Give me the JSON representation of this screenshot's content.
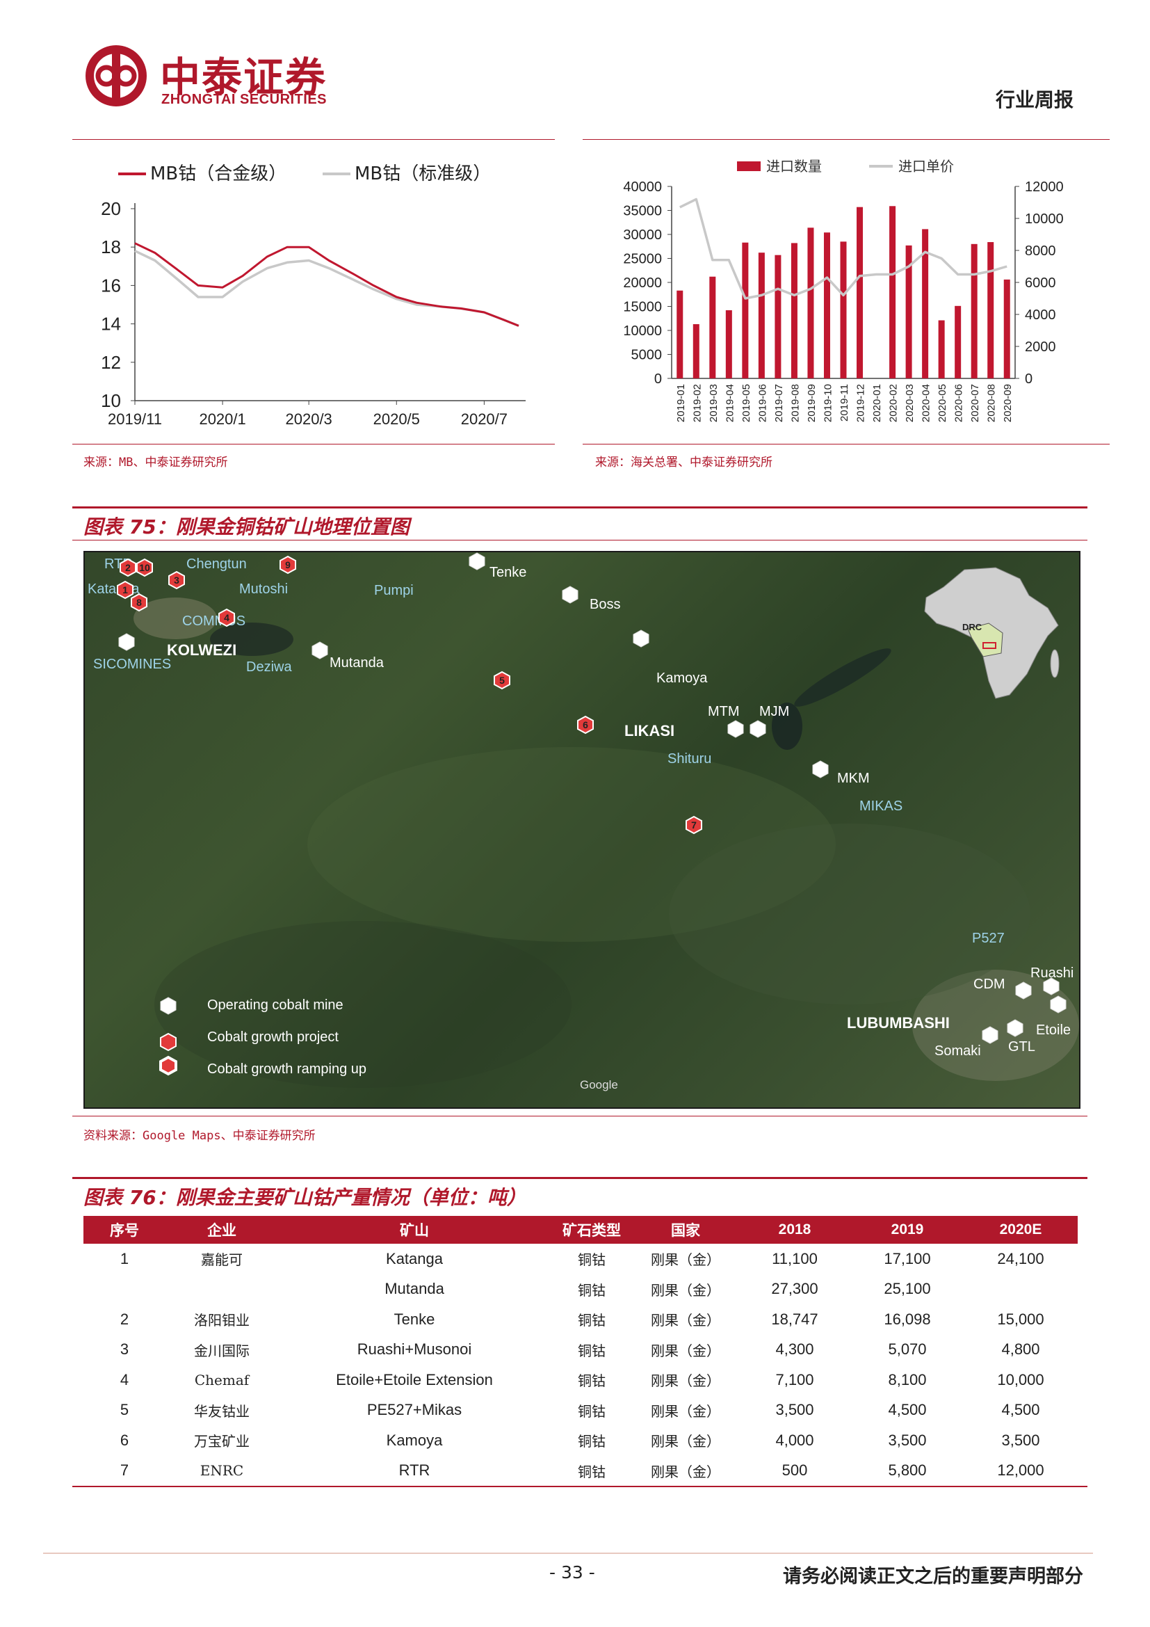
{
  "header": {
    "brand_cn": "中泰证券",
    "brand_en": "ZHONGTAI SECURITIES",
    "doc_type": "行业周报"
  },
  "left_chart": {
    "source": "来源：MB、中泰证券研究所"
  },
  "right_chart": {
    "source": "来源：海关总署、中泰证券研究所"
  },
  "chart_data": [
    {
      "type": "line",
      "title": "",
      "series": [
        {
          "name": "MB钴（合金级）",
          "color": "#c0172f",
          "x": [
            "2019-11-01",
            "2019-11-15",
            "2019-12-01",
            "2019-12-15",
            "2020-01-01",
            "2020-01-15",
            "2020-02-01",
            "2020-02-15",
            "2020-03-01",
            "2020-03-15",
            "2020-04-01",
            "2020-04-15",
            "2020-05-01",
            "2020-05-15",
            "2020-06-01",
            "2020-06-15",
            "2020-07-01",
            "2020-07-15",
            "2020-07-25"
          ],
          "values": [
            18.2,
            17.7,
            16.8,
            16.0,
            15.9,
            16.5,
            17.5,
            18.0,
            18.0,
            17.3,
            16.6,
            16.0,
            15.4,
            15.1,
            14.9,
            14.8,
            14.6,
            14.2,
            13.9
          ]
        },
        {
          "name": "MB钴（标准级）",
          "color": "#c8c8c8",
          "x": [
            "2019-11-01",
            "2019-11-15",
            "2019-12-01",
            "2019-12-15",
            "2020-01-01",
            "2020-01-15",
            "2020-02-01",
            "2020-02-15",
            "2020-03-01",
            "2020-03-15",
            "2020-04-01",
            "2020-04-15",
            "2020-05-01",
            "2020-05-15",
            "2020-06-01",
            "2020-06-15",
            "2020-07-01",
            "2020-07-15",
            "2020-07-25"
          ],
          "values": [
            17.8,
            17.3,
            16.3,
            15.4,
            15.4,
            16.2,
            16.9,
            17.2,
            17.3,
            16.9,
            16.3,
            15.8,
            15.3,
            15.0,
            14.9,
            14.8,
            14.6,
            14.2,
            13.9
          ]
        }
      ],
      "xticks": [
        "2019/11",
        "2020/1",
        "2020/3",
        "2020/5",
        "2020/7"
      ],
      "yticks": [
        10,
        12,
        14,
        16,
        18,
        20
      ],
      "ylim": [
        10,
        20
      ],
      "legend": "top"
    },
    {
      "type": "bar",
      "categories": [
        "2019-01",
        "2019-02",
        "2019-03",
        "2019-04",
        "2019-05",
        "2019-06",
        "2019-07",
        "2019-08",
        "2019-09",
        "2019-10",
        "2019-11",
        "2019-12",
        "2020-01",
        "2020-02",
        "2020-03",
        "2020-04",
        "2020-05",
        "2020-06",
        "2020-07",
        "2020-08",
        "2020-09"
      ],
      "series": [
        {
          "name": "进口数量",
          "type": "bar",
          "axis": "left",
          "color": "#c0172f",
          "values": [
            18300,
            11300,
            21200,
            14200,
            28300,
            26200,
            25700,
            28200,
            31400,
            30400,
            28500,
            35700,
            0,
            35900,
            27700,
            31100,
            12100,
            15100,
            28000,
            28400,
            20600
          ]
        },
        {
          "name": "进口单价",
          "type": "line",
          "axis": "right",
          "color": "#c8c8c8",
          "values": [
            10700,
            11200,
            7400,
            7400,
            5000,
            5200,
            5600,
            5200,
            5600,
            6300,
            5200,
            6400,
            6500,
            6500,
            7000,
            7900,
            7500,
            6500,
            6500,
            6700,
            7000
          ]
        }
      ],
      "ylim_left": [
        0,
        40000
      ],
      "yticks_left": [
        0,
        5000,
        10000,
        15000,
        20000,
        25000,
        30000,
        35000,
        40000
      ],
      "ylim_right": [
        0,
        12000
      ],
      "yticks_right": [
        0,
        2000,
        4000,
        6000,
        8000,
        10000,
        12000
      ],
      "legend": "top"
    }
  ],
  "figure75": {
    "title": "图表 75：刚果金铜钴矿山地理位置图",
    "source": "资料来源：Google Maps、中泰证券研究所",
    "places": {
      "kolwezi": "KOLWEZI",
      "likasi": "LIKASI",
      "lubumbashi": "LUBUMBASHI",
      "drc": "DRC",
      "google": "Google"
    },
    "mines": {
      "rtr": "RTR",
      "chengtun": "Chengtun",
      "katanga": "Katanga",
      "mutoshi": "Mutoshi",
      "commus": "COMMUS",
      "sicomines": "SICOMINES",
      "deziwa": "Deziwa",
      "mutanda": "Mutanda",
      "pumpi": "Pumpi",
      "tenke": "Tenke",
      "boss": "Boss",
      "kamoya": "Kamoya",
      "mtm": "MTM",
      "mjm": "MJM",
      "shituru": "Shituru",
      "mkm": "MKM",
      "mikas": "MIKAS",
      "p527": "P527",
      "cdm": "CDM",
      "ruashi": "Ruashi",
      "etoile": "Etoile",
      "somaki": "Somaki",
      "gtl": "GTL"
    },
    "markers": [
      "1",
      "2",
      "3",
      "4",
      "5",
      "6",
      "7",
      "8",
      "9",
      "10"
    ],
    "legend": [
      "Operating cobalt mine",
      "Cobalt growth project",
      "Cobalt growth ramping up"
    ]
  },
  "figure76": {
    "title": "图表 76：刚果金主要矿山钴产量情况（单位：吨）",
    "headers": [
      "序号",
      "企业",
      "矿山",
      "矿石类型",
      "国家",
      "2018",
      "2019",
      "2020E"
    ],
    "rows": [
      [
        "1",
        "嘉能可",
        "Katanga",
        "铜钴",
        "刚果（金）",
        "11,100",
        "17,100",
        "24,100"
      ],
      [
        "",
        "",
        "Mutanda",
        "铜钴",
        "刚果（金）",
        "27,300",
        "25,100",
        ""
      ],
      [
        "2",
        "洛阳钼业",
        "Tenke",
        "铜钴",
        "刚果（金）",
        "18,747",
        "16,098",
        "15,000"
      ],
      [
        "3",
        "金川国际",
        "Ruashi+Musonoi",
        "铜钴",
        "刚果（金）",
        "4,300",
        "5,070",
        "4,800"
      ],
      [
        "4",
        "Chemaf",
        "Etoile+Etoile Extension",
        "铜钴",
        "刚果（金）",
        "7,100",
        "8,100",
        "10,000"
      ],
      [
        "5",
        "华友钴业",
        "PE527+Mikas",
        "铜钴",
        "刚果（金）",
        "3,500",
        "4,500",
        "4,500"
      ],
      [
        "6",
        "万宝矿业",
        "Kamoya",
        "铜钴",
        "刚果（金）",
        "4,000",
        "3,500",
        "3,500"
      ],
      [
        "7",
        "ENRC",
        "RTR",
        "铜钴",
        "刚果（金）",
        "500",
        "5,800",
        "12,000"
      ]
    ]
  },
  "footer": {
    "page": "- 33 -",
    "disclaimer": "请务必阅读正文之后的重要声明部分"
  }
}
